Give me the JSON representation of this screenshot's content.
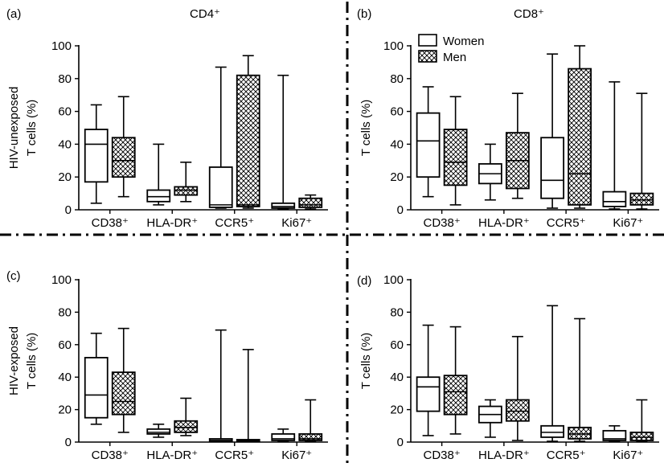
{
  "figure": {
    "legend": {
      "women": "Women",
      "men": "Men"
    },
    "colors": {
      "stroke": "#000000",
      "background": "#ffffff"
    }
  },
  "chart_data": [
    {
      "id": "a",
      "panel_label": "(a)",
      "type": "box",
      "title": "CD4⁺",
      "ylabel_lines": [
        "HIV-unexposed",
        "T cells (%)"
      ],
      "ylim": [
        0,
        100
      ],
      "yticks": [
        0,
        20,
        40,
        60,
        80,
        100
      ],
      "categories": [
        "CD38⁺",
        "HLA-DR⁺",
        "CCR5⁺",
        "Ki67⁺"
      ],
      "series": [
        {
          "name": "Women",
          "pattern": "open",
          "boxes": [
            {
              "min": 4,
              "q1": 17,
              "median": 40,
              "q3": 49,
              "max": 64
            },
            {
              "min": 3,
              "q1": 5,
              "median": 8,
              "q3": 12,
              "max": 40
            },
            {
              "min": 1,
              "q1": 1.5,
              "median": 3,
              "q3": 26,
              "max": 87
            },
            {
              "min": 0.5,
              "q1": 1,
              "median": 2,
              "q3": 4,
              "max": 82
            }
          ]
        },
        {
          "name": "Men",
          "pattern": "crosshatch",
          "boxes": [
            {
              "min": 8,
              "q1": 20,
              "median": 30,
              "q3": 44,
              "max": 69
            },
            {
              "min": 5,
              "q1": 9,
              "median": 12,
              "q3": 14,
              "max": 29
            },
            {
              "min": 1,
              "q1": 2,
              "median": 3,
              "q3": 82,
              "max": 94
            },
            {
              "min": 0.5,
              "q1": 1.5,
              "median": 3,
              "q3": 7,
              "max": 9
            }
          ]
        }
      ]
    },
    {
      "id": "b",
      "panel_label": "(b)",
      "type": "box",
      "title": "CD8⁺",
      "ylabel_lines": [
        "T cells (%)"
      ],
      "ylim": [
        0,
        100
      ],
      "yticks": [
        0,
        20,
        40,
        60,
        80,
        100
      ],
      "categories": [
        "CD38⁺",
        "HLA-DR⁺",
        "CCR5⁺",
        "Ki67⁺"
      ],
      "show_legend": true,
      "series": [
        {
          "name": "Women",
          "pattern": "open",
          "boxes": [
            {
              "min": 8,
              "q1": 20,
              "median": 42,
              "q3": 59,
              "max": 75
            },
            {
              "min": 6,
              "q1": 16,
              "median": 22,
              "q3": 28,
              "max": 40
            },
            {
              "min": 1,
              "q1": 7,
              "median": 18,
              "q3": 44,
              "max": 95
            },
            {
              "min": 0.5,
              "q1": 2,
              "median": 5,
              "q3": 11,
              "max": 78
            }
          ]
        },
        {
          "name": "Men",
          "pattern": "crosshatch",
          "boxes": [
            {
              "min": 3,
              "q1": 15,
              "median": 29,
              "q3": 49,
              "max": 69
            },
            {
              "min": 7,
              "q1": 13,
              "median": 30,
              "q3": 47,
              "max": 71
            },
            {
              "min": 1,
              "q1": 3,
              "median": 22,
              "q3": 86,
              "max": 100
            },
            {
              "min": 0.5,
              "q1": 3,
              "median": 6,
              "q3": 10,
              "max": 71
            }
          ]
        }
      ]
    },
    {
      "id": "c",
      "panel_label": "(c)",
      "type": "box",
      "title": "",
      "ylabel_lines": [
        "HIV-exposed",
        "T cells (%)"
      ],
      "ylim": [
        0,
        100
      ],
      "yticks": [
        0,
        20,
        40,
        60,
        80,
        100
      ],
      "categories": [
        "CD38⁺",
        "HLA-DR⁺",
        "CCR5⁺",
        "Ki67⁺"
      ],
      "series": [
        {
          "name": "Women",
          "pattern": "open",
          "boxes": [
            {
              "min": 11,
              "q1": 15,
              "median": 29,
              "q3": 52,
              "max": 67
            },
            {
              "min": 3,
              "q1": 5,
              "median": 6,
              "q3": 8,
              "max": 11
            },
            {
              "min": 0.3,
              "q1": 0.5,
              "median": 1,
              "q3": 2,
              "max": 69
            },
            {
              "min": 0.5,
              "q1": 1,
              "median": 2,
              "q3": 5,
              "max": 8
            }
          ]
        },
        {
          "name": "Men",
          "pattern": "crosshatch",
          "boxes": [
            {
              "min": 6,
              "q1": 17,
              "median": 25,
              "q3": 43,
              "max": 70
            },
            {
              "min": 4,
              "q1": 6,
              "median": 9,
              "q3": 13,
              "max": 27
            },
            {
              "min": 0.3,
              "q1": 0.5,
              "median": 1,
              "q3": 1.5,
              "max": 57
            },
            {
              "min": 0.5,
              "q1": 1,
              "median": 2,
              "q3": 5,
              "max": 26
            }
          ]
        }
      ]
    },
    {
      "id": "d",
      "panel_label": "(d)",
      "type": "box",
      "title": "",
      "ylabel_lines": [
        "T cells (%)"
      ],
      "ylim": [
        0,
        100
      ],
      "yticks": [
        0,
        20,
        40,
        60,
        80,
        100
      ],
      "categories": [
        "CD38⁺",
        "HLA-DR⁺",
        "CCR5⁺",
        "Ki67⁺"
      ],
      "series": [
        {
          "name": "Women",
          "pattern": "open",
          "boxes": [
            {
              "min": 4,
              "q1": 19,
              "median": 34,
              "q3": 40,
              "max": 72
            },
            {
              "min": 3,
              "q1": 12,
              "median": 17,
              "q3": 22,
              "max": 26
            },
            {
              "min": 0.5,
              "q1": 3,
              "median": 6,
              "q3": 10,
              "max": 84
            },
            {
              "min": 0.5,
              "q1": 1,
              "median": 2,
              "q3": 7,
              "max": 10
            }
          ]
        },
        {
          "name": "Men",
          "pattern": "crosshatch",
          "boxes": [
            {
              "min": 5,
              "q1": 17,
              "median": 31,
              "q3": 41,
              "max": 71
            },
            {
              "min": 1,
              "q1": 13,
              "median": 19,
              "q3": 26,
              "max": 65
            },
            {
              "min": 0.5,
              "q1": 2,
              "median": 5,
              "q3": 9,
              "max": 76
            },
            {
              "min": 0.5,
              "q1": 1,
              "median": 3,
              "q3": 6,
              "max": 26
            }
          ]
        }
      ]
    }
  ]
}
